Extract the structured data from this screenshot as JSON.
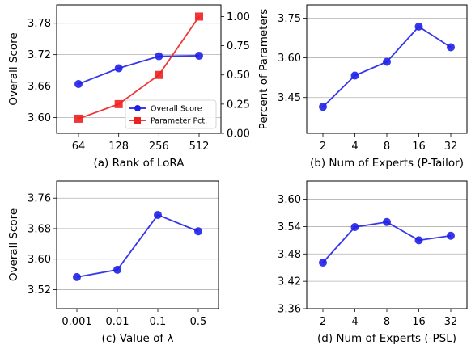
{
  "chart_data": [
    {
      "type": "line",
      "caption": "(a) Rank of LoRA",
      "ylabel": "Overall Score",
      "y2label": "Percent of Parameters",
      "categories": [
        "64",
        "128",
        "256",
        "512"
      ],
      "ylim": [
        3.57,
        3.815
      ],
      "yticks": [
        "3.60",
        "3.66",
        "3.72",
        "3.78"
      ],
      "y2lim": [
        0,
        1.1
      ],
      "y2ticks": [
        "0.00",
        "0.25",
        "0.50",
        "0.75",
        "1.00"
      ],
      "grid": true,
      "legend_position": "lower-right",
      "series": [
        {
          "name": "Overall Score",
          "axis": "left",
          "color": "#2020e8",
          "marker": "circle",
          "values": [
            3.664,
            3.694,
            3.717,
            3.718
          ]
        },
        {
          "name": "Parameter Pct.",
          "axis": "right",
          "color": "#ee2020",
          "marker": "square",
          "values": [
            0.125,
            0.25,
            0.5,
            1.0
          ]
        }
      ]
    },
    {
      "type": "line",
      "caption": "(b) Num of Experts (P-Tailor)",
      "ylabel": "",
      "categories": [
        "2",
        "4",
        "8",
        "16",
        "32"
      ],
      "ylim": [
        3.315,
        3.8
      ],
      "yticks": [
        "3.45",
        "3.60",
        "3.75"
      ],
      "grid": true,
      "series": [
        {
          "color": "#2020e8",
          "marker": "circle",
          "values": [
            3.415,
            3.533,
            3.585,
            3.718,
            3.64
          ]
        }
      ]
    },
    {
      "type": "line",
      "caption": "(c) Value of λ",
      "ylabel": "Overall Score",
      "categories": [
        "0.001",
        "0.01",
        "0.1",
        "0.5"
      ],
      "ylim": [
        3.47,
        3.805
      ],
      "yticks": [
        "3.52",
        "3.60",
        "3.68",
        "3.76"
      ],
      "grid": true,
      "series": [
        {
          "color": "#2020e8",
          "marker": "circle",
          "values": [
            3.553,
            3.572,
            3.716,
            3.673
          ]
        }
      ]
    },
    {
      "type": "line",
      "caption": "(d) Num of Experts (-PSL)",
      "ylabel": "",
      "categories": [
        "2",
        "4",
        "8",
        "16",
        "32"
      ],
      "ylim": [
        3.36,
        3.64
      ],
      "yticks": [
        "3.36",
        "3.42",
        "3.48",
        "3.54",
        "3.60"
      ],
      "grid": true,
      "series": [
        {
          "color": "#2020e8",
          "marker": "circle",
          "values": [
            3.461,
            3.539,
            3.55,
            3.51,
            3.52
          ]
        }
      ]
    }
  ]
}
